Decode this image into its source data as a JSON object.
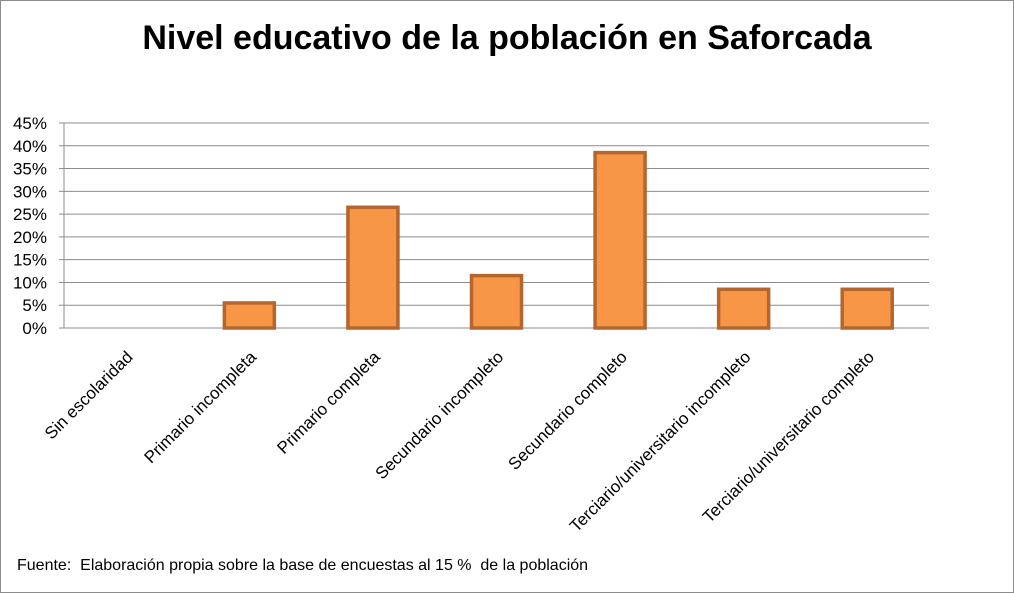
{
  "chart_data": {
    "type": "bar",
    "title": "Nivel educativo de la población en Saforcada",
    "categories": [
      "Sin escolaridad",
      "Primario incompleta",
      "Primario completa",
      "Secundario incompleto",
      "Secundario completo",
      "Terciario/universitario incompleto",
      "Terciario/universitario completo"
    ],
    "values": [
      0,
      5.5,
      26.5,
      11.5,
      38.5,
      8.5,
      8.5
    ],
    "ylim": [
      0,
      45
    ],
    "yticks": [
      "0%",
      "5%",
      "10%",
      "15%",
      "20%",
      "25%",
      "30%",
      "35%",
      "40%",
      "45%"
    ],
    "xlabel": "",
    "ylabel": "",
    "grid": true,
    "bar_fill": "#F79646",
    "bar_stroke": "#B5662E",
    "grid_color": "#8c8c8c"
  },
  "footer": {
    "source": "Fuente:  Elaboración propia sobre la base de encuestas al 15 %  de la población"
  }
}
